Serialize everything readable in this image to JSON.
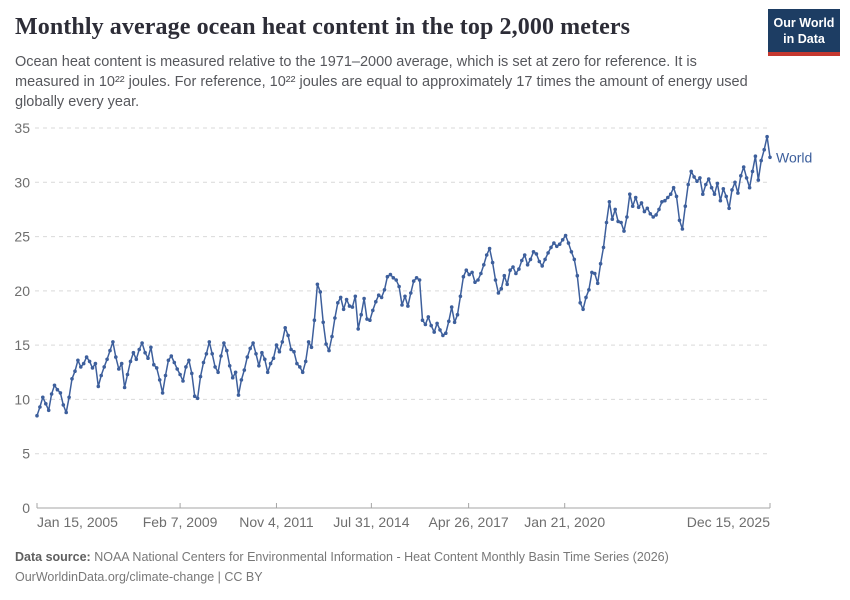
{
  "header": {
    "title": "Monthly average ocean heat content in the top 2,000 meters",
    "subtitle": "Ocean heat content is measured relative to the 1971–2000 average, which is set at zero for reference. It is measured in 10²² joules. For reference, 10²² joules are equal to approximately 17 times the amount of energy used globally every year."
  },
  "logo": {
    "line1": "Our World",
    "line2": "in Data",
    "background_color": "#1d3d63",
    "stripe_color": "#c5382f"
  },
  "footer": {
    "source_label": "Data source:",
    "source_text": "NOAA National Centers for Environmental Information - Heat Content Monthly Basin Time Series (2026)",
    "link": "OurWorldinData.org/climate-change",
    "separator": "|",
    "license": "CC BY"
  },
  "chart_data": {
    "type": "line",
    "title": "Monthly average ocean heat content in the top 2,000 meters",
    "ylim": [
      0,
      35
    ],
    "y_ticks": [
      0,
      5,
      10,
      15,
      20,
      25,
      30,
      35
    ],
    "grid": true,
    "grid_color": "#d9d9d9",
    "axis_color": "#a5a5a5",
    "tick_label_color": "#6e6e6e",
    "x_ticks": [
      {
        "label": "Jan 15, 2005",
        "month_index": 0
      },
      {
        "label": "Feb 7, 2009",
        "month_index": 49
      },
      {
        "label": "Nov 4, 2011",
        "month_index": 82
      },
      {
        "label": "Jul 31, 2014",
        "month_index": 114.5
      },
      {
        "label": "Apr 26, 2017",
        "month_index": 147.8
      },
      {
        "label": "Jan 21, 2020",
        "month_index": 180.7
      },
      {
        "label": "Dec 15, 2025",
        "month_index": 251
      }
    ],
    "series": [
      {
        "name": "World",
        "color": "#3d5f9c",
        "start": "Jan 2005",
        "end": "Dec 2025",
        "values": [
          8.5,
          9.3,
          10.2,
          9.6,
          9.0,
          10.5,
          11.3,
          10.9,
          10.6,
          9.5,
          8.8,
          10.2,
          11.9,
          12.6,
          13.6,
          13.0,
          13.3,
          13.9,
          13.5,
          12.9,
          13.3,
          11.2,
          12.2,
          13.0,
          13.7,
          14.5,
          15.3,
          13.9,
          12.8,
          13.3,
          11.1,
          12.3,
          13.5,
          14.3,
          13.7,
          14.6,
          15.2,
          14.3,
          13.8,
          14.8,
          13.2,
          12.9,
          11.8,
          10.6,
          12.2,
          13.6,
          14.0,
          13.4,
          12.8,
          12.3,
          11.7,
          13.0,
          13.6,
          12.4,
          10.3,
          10.1,
          12.1,
          13.4,
          14.2,
          15.3,
          14.2,
          13.0,
          12.5,
          14.0,
          15.2,
          14.5,
          13.1,
          12.0,
          12.5,
          10.4,
          11.8,
          12.7,
          13.9,
          14.7,
          15.2,
          14.2,
          13.1,
          14.3,
          13.7,
          12.5,
          13.3,
          13.8,
          15.0,
          14.4,
          15.3,
          16.6,
          15.9,
          14.6,
          14.4,
          13.3,
          13.0,
          12.5,
          13.5,
          15.3,
          14.8,
          17.3,
          20.6,
          19.9,
          17.1,
          15.1,
          14.5,
          15.8,
          17.5,
          18.9,
          19.4,
          18.3,
          19.2,
          18.6,
          18.5,
          19.5,
          16.5,
          17.8,
          19.3,
          17.4,
          17.3,
          18.2,
          19.0,
          19.6,
          19.4,
          20.1,
          21.3,
          21.5,
          21.2,
          21.0,
          20.4,
          18.7,
          19.5,
          18.6,
          19.8,
          20.9,
          21.2,
          21.0,
          17.3,
          16.9,
          17.6,
          16.8,
          16.2,
          17.0,
          16.4,
          15.9,
          16.1,
          17.2,
          18.5,
          17.1,
          17.8,
          19.5,
          21.3,
          21.9,
          21.5,
          21.7,
          20.8,
          21.0,
          21.6,
          22.4,
          23.3,
          23.9,
          22.6,
          21.0,
          19.8,
          20.2,
          21.4,
          20.6,
          21.9,
          22.2,
          21.6,
          22.0,
          22.8,
          23.3,
          22.4,
          22.9,
          23.6,
          23.4,
          22.7,
          22.3,
          22.9,
          23.5,
          24.0,
          24.4,
          24.1,
          24.3,
          24.7,
          25.1,
          24.4,
          23.6,
          22.9,
          21.4,
          18.9,
          18.3,
          19.4,
          20.1,
          21.7,
          21.6,
          20.7,
          22.5,
          24.0,
          26.3,
          28.2,
          26.6,
          27.5,
          26.4,
          26.3,
          25.5,
          26.8,
          28.9,
          27.8,
          28.6,
          27.7,
          28.1,
          27.3,
          27.6,
          27.1,
          26.8,
          27.0,
          27.5,
          28.2,
          28.3,
          28.6,
          28.9,
          29.5,
          28.7,
          26.5,
          25.7,
          27.8,
          29.8,
          31.0,
          30.5,
          30.1,
          30.4,
          28.9,
          29.8,
          30.3,
          29.5,
          28.9,
          29.9,
          28.3,
          29.4,
          28.7,
          27.6,
          29.3,
          30.0,
          29.0,
          30.6,
          31.4,
          30.4,
          29.5,
          31.0,
          32.4,
          30.2,
          32.0,
          33.0,
          34.2,
          32.3
        ]
      }
    ],
    "end_label": "World"
  }
}
